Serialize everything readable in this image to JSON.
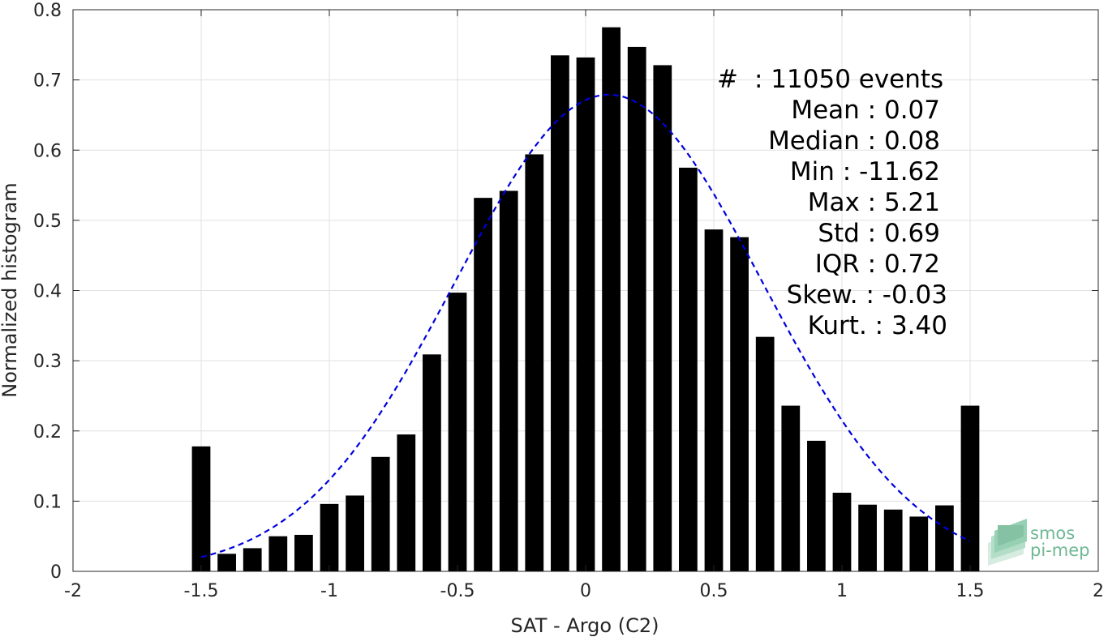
{
  "colors": {
    "bar": "#000000",
    "fit_curve": "#0000dd",
    "grid": "#e0e0e0",
    "axis": "#262626",
    "logo": "#6fb894"
  },
  "chart_data": {
    "type": "bar",
    "xlabel": "SAT - Argo (C2)",
    "ylabel": "Normalized histogram",
    "xlim": [
      -2,
      2
    ],
    "ylim": [
      0,
      0.8
    ],
    "grid": true,
    "x_ticks": [
      "-2",
      "-1.5",
      "-1",
      "-0.5",
      "0",
      "0.5",
      "1",
      "1.5",
      "2"
    ],
    "y_ticks": [
      "0",
      "0.1",
      "0.2",
      "0.3",
      "0.4",
      "0.5",
      "0.6",
      "0.7",
      "0.8"
    ],
    "x": [
      -1.5,
      -1.4,
      -1.3,
      -1.2,
      -1.1,
      -1.0,
      -0.9,
      -0.8,
      -0.7,
      -0.6,
      -0.5,
      -0.4,
      -0.3,
      -0.2,
      -0.1,
      0.0,
      0.1,
      0.2,
      0.3,
      0.4,
      0.5,
      0.6,
      0.7,
      0.8,
      0.9,
      1.0,
      1.1,
      1.2,
      1.3,
      1.4,
      1.5
    ],
    "values": [
      0.178,
      0.025,
      0.033,
      0.05,
      0.052,
      0.096,
      0.108,
      0.163,
      0.195,
      0.309,
      0.397,
      0.532,
      0.542,
      0.594,
      0.735,
      0.732,
      0.775,
      0.747,
      0.721,
      0.575,
      0.487,
      0.476,
      0.334,
      0.236,
      0.186,
      0.112,
      0.095,
      0.088,
      0.078,
      0.094,
      0.236
    ],
    "fit_curve": {
      "style": "dashed",
      "type": "normal",
      "mean": 0.09,
      "std": 0.6,
      "peak": 0.679,
      "x_range": [
        -1.5,
        1.5
      ]
    }
  },
  "stats": [
    {
      "label": "#",
      "sep": ":",
      "value": "11050 events"
    },
    {
      "label": "Mean",
      "sep": ":",
      "value": "0.07"
    },
    {
      "label": "Median",
      "sep": ":",
      "value": "0.08"
    },
    {
      "label": "Min",
      "sep": ":",
      "value": "-11.62"
    },
    {
      "label": "Max",
      "sep": ":",
      "value": "5.21"
    },
    {
      "label": "Std",
      "sep": ":",
      "value": "0.69"
    },
    {
      "label": "IQR",
      "sep": ":",
      "value": "0.72"
    },
    {
      "label": "Skew.",
      "sep": ":",
      "value": "-0.03"
    },
    {
      "label": "Kurt.",
      "sep": ":",
      "value": "3.40"
    }
  ],
  "logo": {
    "line1": "smos",
    "line2": "pi-mep",
    "icon": "smos-pimep-logo-icon"
  }
}
